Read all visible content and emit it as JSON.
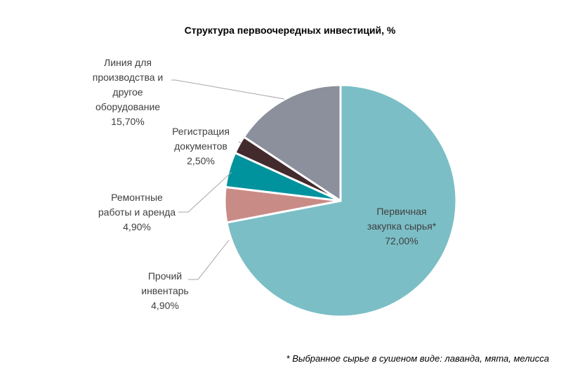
{
  "chart_data": {
    "type": "pie",
    "title": "Структура первоочередных инвестиций, %",
    "slices": [
      {
        "label_lines": [
          "Первичная",
          "закупка сырья*"
        ],
        "value": 72.0,
        "value_label": "72,00%",
        "color": "#7BBEC6"
      },
      {
        "label_lines": [
          "Прочий",
          "инвентарь"
        ],
        "value": 4.9,
        "value_label": "4,90%",
        "color": "#C98B86"
      },
      {
        "label_lines": [
          "Ремонтные",
          "работы и аренда"
        ],
        "value": 4.9,
        "value_label": "4,90%",
        "color": "#00939E"
      },
      {
        "label_lines": [
          "Регистрация",
          "документов"
        ],
        "value": 2.5,
        "value_label": "2,50%",
        "color": "#432A2D"
      },
      {
        "label_lines": [
          "Линия для",
          "производства и",
          "другое",
          "оборудование"
        ],
        "value": 15.7,
        "value_label": "15,70%",
        "color": "#8C8F9C"
      }
    ],
    "footnote": "* Выбранное сырье в сушеном виде: лаванда, мята, мелисса"
  }
}
